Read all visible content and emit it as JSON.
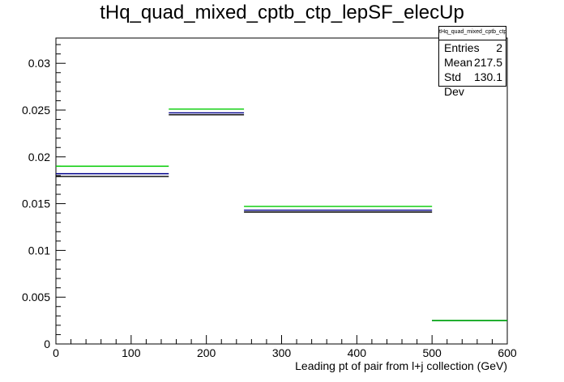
{
  "chart_data": {
    "type": "histogram",
    "title": "tHq_quad_mixed_cptb_ctp_lepSF_elecUp",
    "xlabel": "Leading pt of pair from l+j collection (GeV)",
    "ylabel": "",
    "xlim": [
      0,
      600
    ],
    "ylim": [
      0,
      0.0327
    ],
    "x_ticks": [
      0,
      100,
      200,
      300,
      400,
      500,
      600
    ],
    "y_ticks": [
      0,
      0.005,
      0.01,
      0.015,
      0.02,
      0.025,
      0.03
    ],
    "x_tick_labels": [
      "0",
      "100",
      "200",
      "300",
      "400",
      "500",
      "600"
    ],
    "y_tick_labels": [
      "0",
      "0.005",
      "0.01",
      "0.015",
      "0.02",
      "0.025",
      "0.03"
    ],
    "bins": [
      [
        0,
        150
      ],
      [
        150,
        250
      ],
      [
        250,
        500
      ],
      [
        500,
        600
      ]
    ],
    "series": [
      {
        "color": "#000000",
        "values": [
          0.0179,
          0.0245,
          0.0141,
          0.0025
        ]
      },
      {
        "color": "#00008b",
        "values": [
          0.0182,
          0.0247,
          0.0143,
          0.0025
        ]
      },
      {
        "color": "#00cc00",
        "values": [
          0.019,
          0.0251,
          0.0147,
          0.0025
        ]
      }
    ],
    "grid": false
  },
  "stats": {
    "title": "tHq_quad_mixed_cptb_ctp_lepSF_elecUp",
    "rows": [
      {
        "label": "Entries",
        "value": "2"
      },
      {
        "label": "Mean",
        "value": "217.5"
      },
      {
        "label": "Std Dev",
        "value": "130.1"
      }
    ]
  }
}
